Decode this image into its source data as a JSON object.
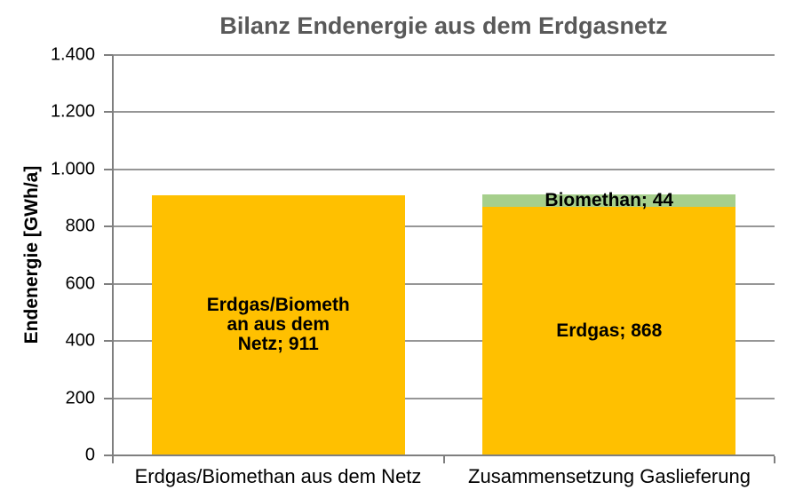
{
  "title": "Bilanz Endenergie aus dem Erdgasnetz",
  "chart_data": {
    "type": "bar",
    "stacked": true,
    "title": "Bilanz Endenergie aus dem Erdgasnetz",
    "xlabel": "",
    "ylabel": "Endenergie [GWh/a]",
    "ylim": [
      0,
      1400
    ],
    "ytick_step": 200,
    "ytick_labels": [
      "0",
      "200",
      "400",
      "600",
      "800",
      "1.000",
      "1.200",
      "1.400"
    ],
    "grid": true,
    "legend": "none",
    "categories": [
      "Erdgas/Biomethan aus dem Netz",
      "Zusammensetzung Gaslieferung"
    ],
    "bars": [
      {
        "category": "Erdgas/Biomethan aus dem Netz",
        "segments": [
          {
            "name": "Erdgas/Biomethan aus dem Netz",
            "value": 911,
            "color": "#FFC000",
            "data_label": "Erdgas/Biometh\nan aus dem\nNetz; 911"
          }
        ]
      },
      {
        "category": "Zusammensetzung Gaslieferung",
        "segments": [
          {
            "name": "Erdgas",
            "value": 868,
            "color": "#FFC000",
            "data_label": "Erdgas; 868"
          },
          {
            "name": "Biomethan",
            "value": 44,
            "color": "#A6CF8C",
            "data_label": "Biomethan; 44"
          }
        ]
      }
    ],
    "colors": {
      "erdgas": "#FFC000",
      "biomethan": "#A6CF8C",
      "gridline": "#969696",
      "axis": "#7F7F7F",
      "title": "#595959",
      "text": "#000000",
      "background": "#FFFFFF"
    }
  }
}
